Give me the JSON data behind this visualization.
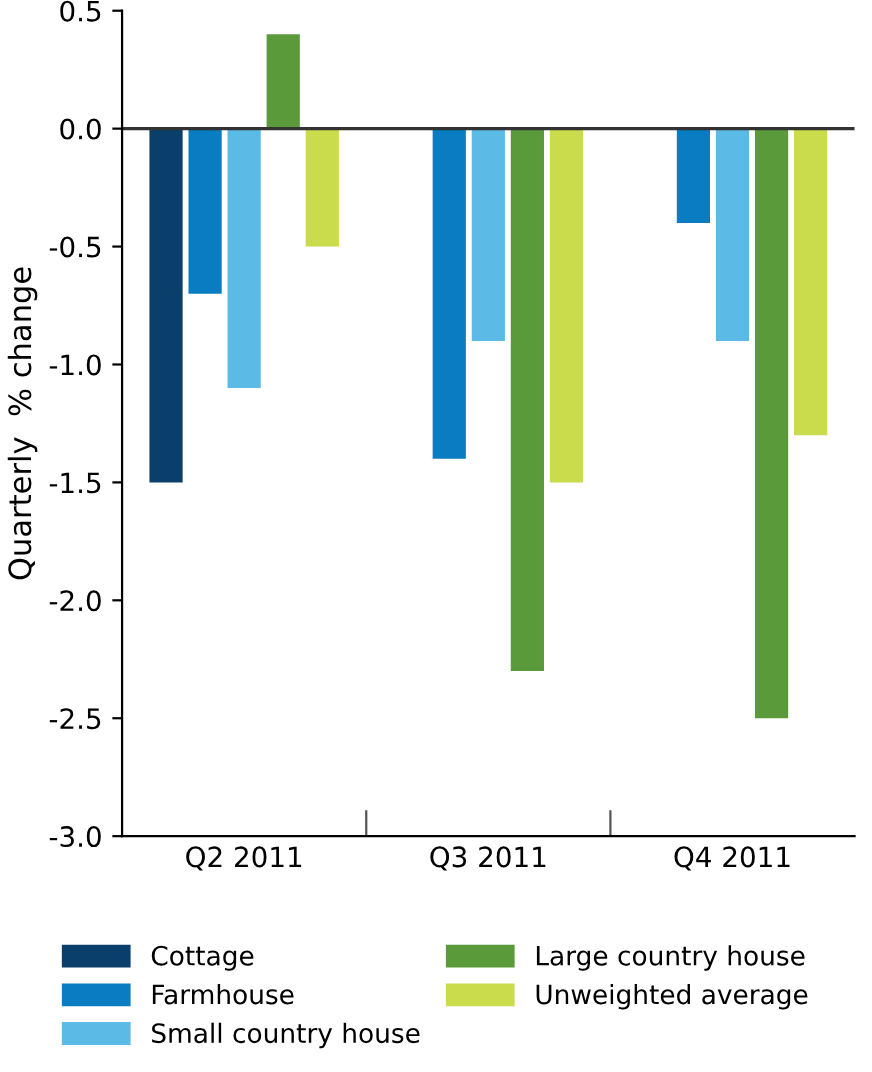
{
  "chart_data": {
    "type": "bar",
    "ylabel": "Quarterly  % change",
    "categories": [
      "Q2 2011",
      "Q3 2011",
      "Q4 2011"
    ],
    "series": [
      {
        "name": "Cottage",
        "color": "#0b3f6b",
        "values": [
          -1.5,
          null,
          null
        ]
      },
      {
        "name": "Farmhouse",
        "color": "#0a7cc2",
        "values": [
          -0.7,
          -1.4,
          -0.4
        ]
      },
      {
        "name": "Small country house",
        "color": "#5bbbe6",
        "values": [
          -1.1,
          -0.9,
          -0.9
        ]
      },
      {
        "name": "Large country house",
        "color": "#5b9a3b",
        "values": [
          0.4,
          -2.3,
          -2.5
        ]
      },
      {
        "name": "Unweighted average",
        "color": "#cadc4c",
        "values": [
          -0.5,
          -1.5,
          -1.3
        ]
      }
    ],
    "ylim": [
      -3.0,
      0.5
    ],
    "yticks": [
      {
        "value": -3.0,
        "label": "-3.0"
      },
      {
        "value": -2.5,
        "label": "-2.5"
      },
      {
        "value": -2.0,
        "label": "-2.0"
      },
      {
        "value": -1.5,
        "label": "-1.5"
      },
      {
        "value": -1.0,
        "label": "-1.0"
      },
      {
        "value": -0.5,
        "label": "-0.5"
      },
      {
        "value": 0.0,
        "label": "0.0"
      },
      {
        "value": 0.5,
        "label": "0.5"
      }
    ],
    "ref_lines": [
      {
        "axis": "y",
        "value": 0.0,
        "color": "#333333"
      }
    ],
    "grid": false,
    "legend": "bottom"
  }
}
